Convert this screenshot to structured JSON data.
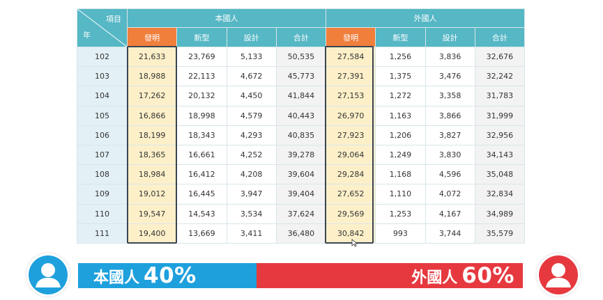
{
  "table": {
    "corner_top": "項目",
    "corner_bottom": "年",
    "groups": [
      "本國人",
      "外國人"
    ],
    "subheaders": [
      "發明",
      "新型",
      "設計",
      "合計",
      "發明",
      "新型",
      "設計",
      "合計"
    ],
    "rows": [
      [
        "102",
        "21,633",
        "23,769",
        "5,133",
        "50,535",
        "27,584",
        "1,256",
        "3,836",
        "32,676"
      ],
      [
        "103",
        "18,988",
        "22,113",
        "4,672",
        "45,773",
        "27,391",
        "1,375",
        "3,476",
        "32,242"
      ],
      [
        "104",
        "17,262",
        "20,132",
        "4,450",
        "41,844",
        "27,153",
        "1,272",
        "3,358",
        "31,783"
      ],
      [
        "105",
        "16,866",
        "18,998",
        "4,579",
        "40,443",
        "26,970",
        "1,163",
        "3,866",
        "31,999"
      ],
      [
        "106",
        "18,199",
        "18,343",
        "4,293",
        "40,835",
        "27,923",
        "1,206",
        "3,827",
        "32,956"
      ],
      [
        "107",
        "18,365",
        "16,661",
        "4,252",
        "39,278",
        "29,064",
        "1,249",
        "3,830",
        "34,143"
      ],
      [
        "108",
        "18,984",
        "16,412",
        "4,208",
        "39,604",
        "29,284",
        "1,168",
        "4,596",
        "35,048"
      ],
      [
        "109",
        "19,012",
        "16,445",
        "3,947",
        "39,404",
        "27,652",
        "1,110",
        "4,072",
        "32,834"
      ],
      [
        "110",
        "19,547",
        "14,543",
        "3,534",
        "37,624",
        "29,569",
        "1,253",
        "4,167",
        "34,989"
      ],
      [
        "111",
        "19,400",
        "13,669",
        "3,411",
        "36,480",
        "30,842",
        "993",
        "3,744",
        "35,579"
      ]
    ]
  },
  "summary": {
    "left": {
      "name": "本國人",
      "percent": "40%"
    },
    "right": {
      "name": "外國人",
      "percent": "60%"
    }
  },
  "icons": {
    "left_avatar": "user-icon",
    "right_avatar": "user-icon"
  },
  "colors": {
    "header": "#56b7c5",
    "highlight_header": "#f07f3c",
    "highlight_cell": "#fdf0c9",
    "left_bar": "#1ea0dd",
    "right_bar": "#e6393f"
  }
}
